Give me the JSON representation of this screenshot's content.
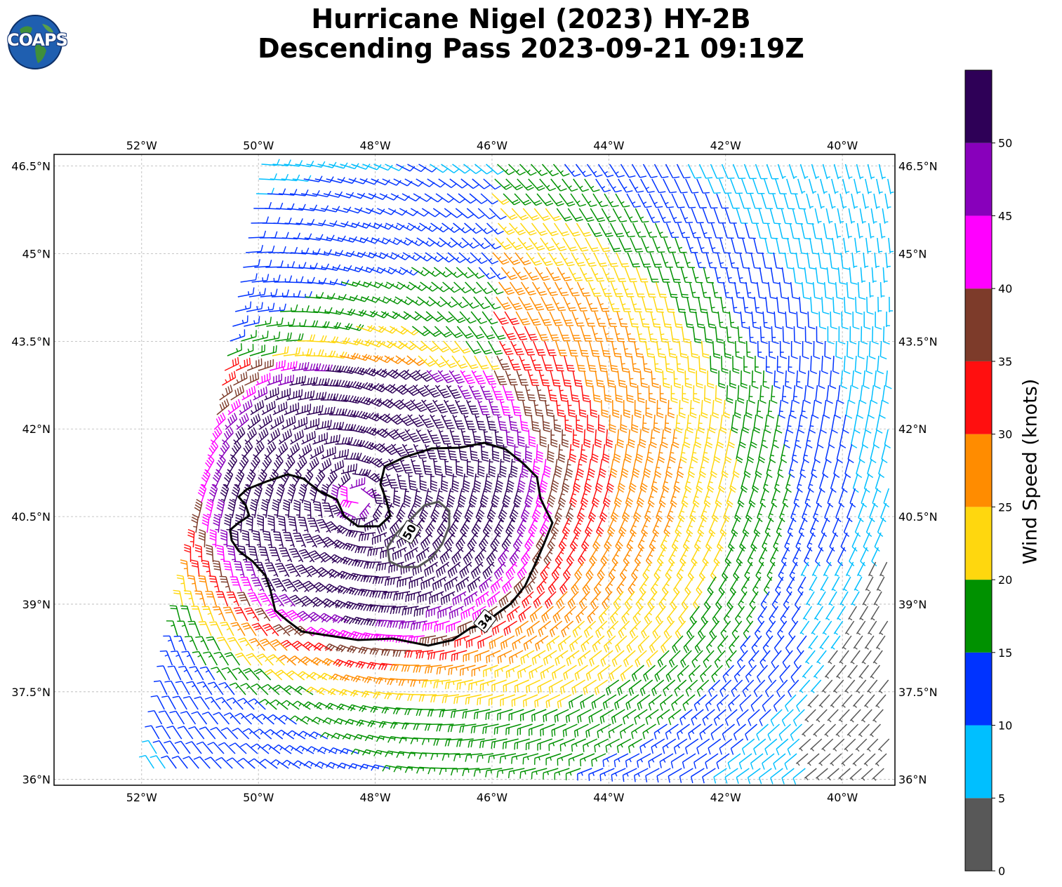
{
  "title": {
    "line1": "Hurricane Nigel (2023) HY-2B",
    "line2": "Descending Pass 2023-09-21 09:19Z"
  },
  "logo": {
    "text": "COAPS",
    "icon": "globe-icon"
  },
  "map": {
    "lon_range": [
      -53.5,
      -39.1
    ],
    "lat_range": [
      35.9,
      46.7
    ],
    "lon_ticks": [
      "52°W",
      "50°W",
      "48°W",
      "46°W",
      "44°W",
      "42°W",
      "40°W"
    ],
    "lon_tick_values": [
      -52,
      -50,
      -48,
      -46,
      -44,
      -42,
      -40
    ],
    "lat_ticks": [
      "46.5°N",
      "45°N",
      "43.5°N",
      "42°N",
      "40.5°N",
      "39°N",
      "37.5°N",
      "36°N"
    ],
    "lat_tick_values": [
      46.5,
      45,
      43.5,
      42,
      40.5,
      39,
      37.5,
      36
    ],
    "grid": true,
    "storm_center": {
      "lon": -48.3,
      "lat": 40.8
    },
    "contour_labels": [
      "50",
      "34"
    ],
    "contour_label_values": [
      50,
      34
    ]
  },
  "colorbar": {
    "label": "Wind Speed (knots)",
    "ticks": [
      "0",
      "5",
      "10",
      "15",
      "20",
      "25",
      "30",
      "35",
      "40",
      "45",
      "50"
    ],
    "tick_values": [
      0,
      5,
      10,
      15,
      20,
      25,
      30,
      35,
      40,
      45,
      50
    ],
    "max": 55,
    "colors": [
      "#585858",
      "#00bfff",
      "#0033ff",
      "#009100",
      "#ffd70e",
      "#ff8c00",
      "#ff0f0f",
      "#7d3b2a",
      "#ff00ff",
      "#8800bb",
      "#2e0057"
    ]
  }
}
